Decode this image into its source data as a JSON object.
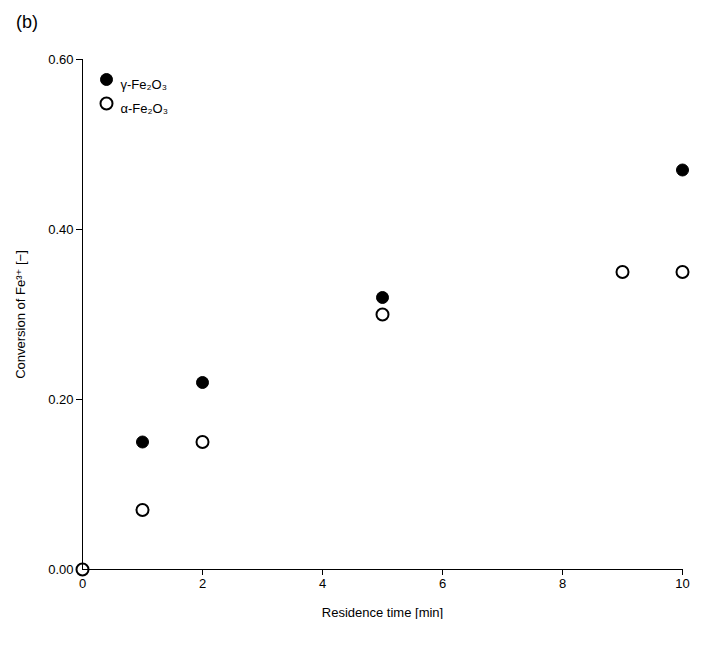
{
  "chart_data": {
    "type": "scatter",
    "title": "(b)",
    "x_label": "Residence time [min]",
    "y_label": "Conversion of Fe³⁺ [−]",
    "xlim": [
      0,
      10
    ],
    "xticks": [
      0,
      2,
      4,
      6,
      8,
      10
    ],
    "ylim": [
      0,
      0.6
    ],
    "yticks": [
      0,
      0.2,
      0.4,
      0.6
    ],
    "grid": false,
    "legend": "upper left",
    "series": [
      {
        "name": "γ-Fe₂O₃",
        "color": "#000000",
        "marker": "circle",
        "x": [
          0,
          1,
          2,
          5,
          10
        ],
        "values": [
          0,
          0.15,
          0.22,
          0.32,
          0.47
        ]
      },
      {
        "name": "α-Fe₂O₃",
        "color": "#000000",
        "marker": "open_circle",
        "x": [
          0,
          1,
          2,
          5,
          9,
          10
        ],
        "values": [
          0,
          0.07,
          0.15,
          0.3,
          0.35,
          0.35
        ]
      }
    ]
  }
}
